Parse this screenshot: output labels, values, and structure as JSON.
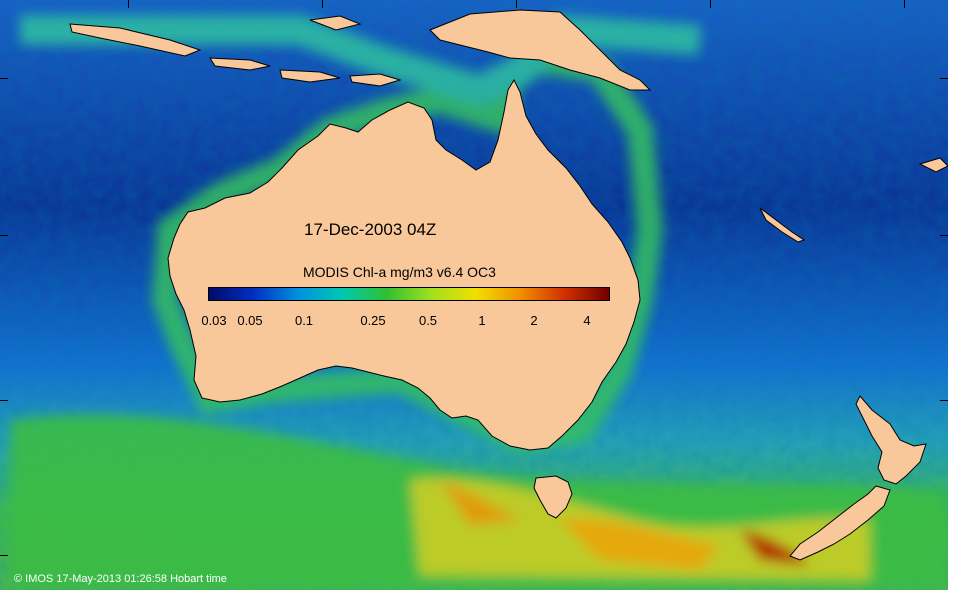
{
  "map": {
    "date_label": "17-Dec-2003 04Z",
    "credit": "© IMOS 17-May-2013 01:26:58 Hobart time"
  },
  "legend": {
    "title": "MODIS Chl-a mg/m3 v6.4 OC3",
    "ticks": [
      "0.03",
      "0.05",
      "0.1",
      "0.25",
      "0.5",
      "1",
      "2",
      "4"
    ],
    "palette": [
      "#000a6a",
      "#0030c0",
      "#0090e0",
      "#00c8b0",
      "#30c030",
      "#a0e020",
      "#f0e000",
      "#f09000",
      "#d03000",
      "#700000"
    ]
  },
  "colors": {
    "land": "#f8c79a",
    "deep_ocean": "#0a2c8c",
    "mid_ocean": "#1a6ad6",
    "productive_ocean": "#38c048",
    "bloom": "#f0c000",
    "high_bloom": "#c02800"
  }
}
